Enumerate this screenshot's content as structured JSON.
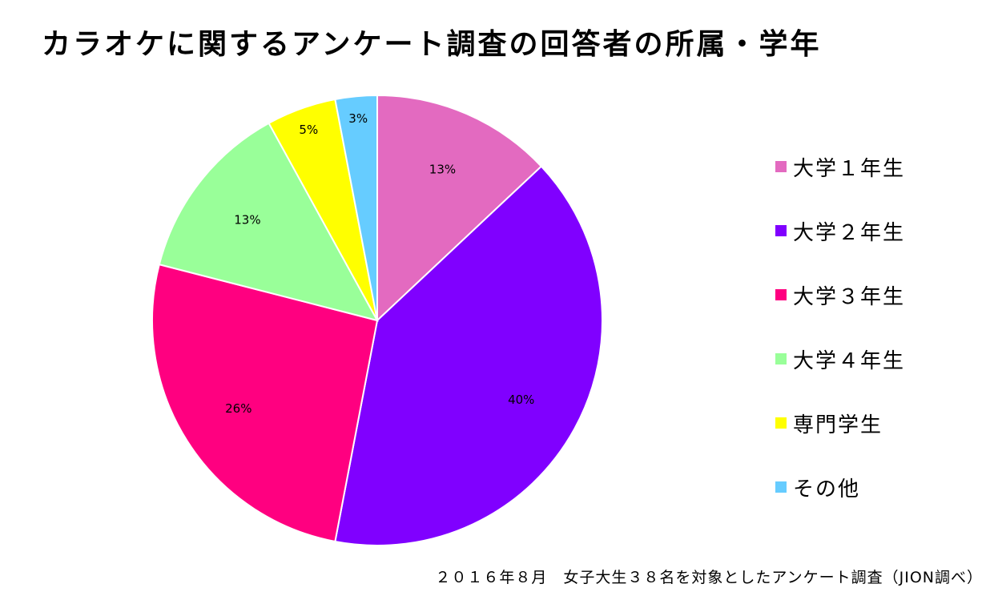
{
  "chart_data": {
    "type": "pie",
    "title": "カラオケに関するアンケート調査の回答者の所属・学年",
    "categories": [
      "大学１年生",
      "大学２年生",
      "大学３年生",
      "大学４年生",
      "専門学生",
      "その他"
    ],
    "values": [
      13,
      40,
      26,
      13,
      5,
      3
    ],
    "data_labels": [
      "13%",
      "40%",
      "26%",
      "13%",
      "5%",
      "3%"
    ],
    "colors": [
      "#E36AC0",
      "#8000FF",
      "#FF0080",
      "#99FF99",
      "#FFFF00",
      "#66CCFF"
    ],
    "legend_position": "right",
    "start_angle": "top, clockwise"
  },
  "footnote": "２０１６年８月　女子大生３８名を対象としたアンケート調査（JION調べ）"
}
